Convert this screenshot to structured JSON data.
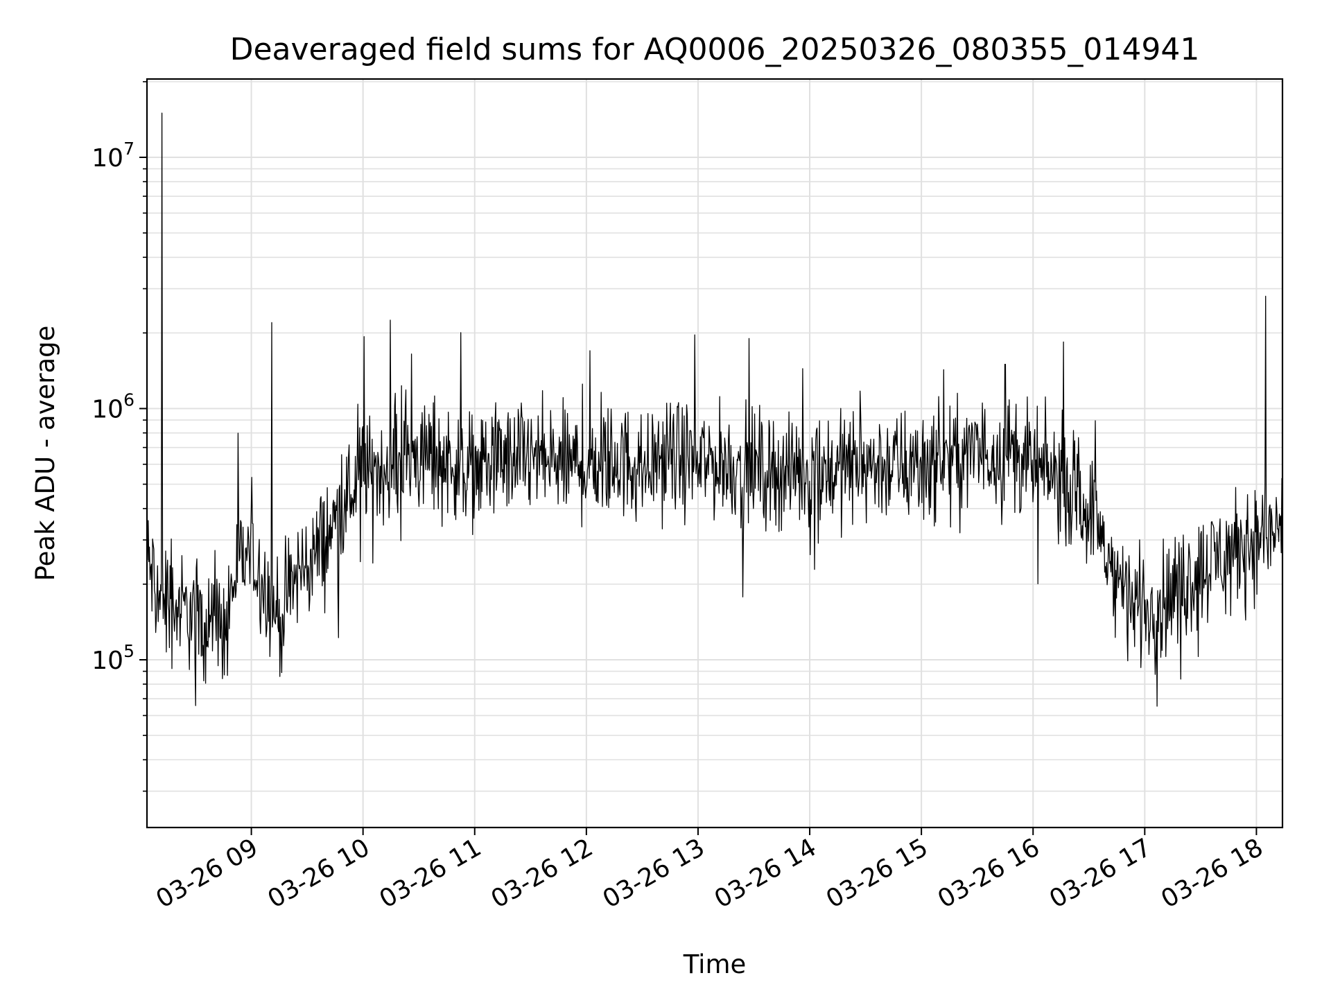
{
  "chart_data": {
    "type": "line",
    "title": "Deaveraged field sums for AQ0006_20250326_080355_014941",
    "xlabel": "Time",
    "ylabel": "Peak ADU - average",
    "x_type": "datetime",
    "xlim": [
      "2025-03-26T08:03:55",
      "2025-03-26T18:14:00"
    ],
    "y_scale": "log",
    "ylim": [
      21500,
      20500000
    ],
    "y_ticks": [
      {
        "value": 100000,
        "base": "10",
        "exponent": "5"
      },
      {
        "value": 1000000,
        "base": "10",
        "exponent": "6"
      },
      {
        "value": 10000000,
        "base": "10",
        "exponent": "7"
      }
    ],
    "x_ticks": [
      {
        "value": "2025-03-26T09:00:00",
        "label": "03-26 09"
      },
      {
        "value": "2025-03-26T10:00:00",
        "label": "03-26 10"
      },
      {
        "value": "2025-03-26T11:00:00",
        "label": "03-26 11"
      },
      {
        "value": "2025-03-26T12:00:00",
        "label": "03-26 12"
      },
      {
        "value": "2025-03-26T13:00:00",
        "label": "03-26 13"
      },
      {
        "value": "2025-03-26T14:00:00",
        "label": "03-26 14"
      },
      {
        "value": "2025-03-26T15:00:00",
        "label": "03-26 15"
      },
      {
        "value": "2025-03-26T16:00:00",
        "label": "03-26 16"
      },
      {
        "value": "2025-03-26T17:00:00",
        "label": "03-26 17"
      },
      {
        "value": "2025-03-26T18:00:00",
        "label": "03-26 18"
      }
    ],
    "grid": "major and minor",
    "line_color": "#000000",
    "grid_color": "#e0e0e0",
    "series": [
      {
        "x": [
          "2025-03-26T08:04:00",
          "2025-03-26T08:10:00",
          "2025-03-26T08:12:00",
          "2025-03-26T08:15:00",
          "2025-03-26T08:20:00",
          "2025-03-26T08:30:00",
          "2025-03-26T08:40:00",
          "2025-03-26T08:45:00",
          "2025-03-26T08:50:00",
          "2025-03-26T08:55:00",
          "2025-03-26T09:00:00",
          "2025-03-26T09:05:00",
          "2025-03-26T09:10:00",
          "2025-03-26T09:11:00",
          "2025-03-26T09:15:00",
          "2025-03-26T09:20:00",
          "2025-03-26T09:25:00",
          "2025-03-26T09:30:00",
          "2025-03-26T09:40:00",
          "2025-03-26T09:50:00",
          "2025-03-26T10:00:00",
          "2025-03-26T10:15:00",
          "2025-03-26T10:30:00",
          "2025-03-26T10:45:00",
          "2025-03-26T11:00:00",
          "2025-03-26T11:15:00",
          "2025-03-26T11:30:00",
          "2025-03-26T11:45:00",
          "2025-03-26T12:00:00",
          "2025-03-26T12:02:00",
          "2025-03-26T12:15:00",
          "2025-03-26T12:30:00",
          "2025-03-26T12:45:00",
          "2025-03-26T13:00:00",
          "2025-03-26T13:15:00",
          "2025-03-26T13:30:00",
          "2025-03-26T13:45:00",
          "2025-03-26T14:00:00",
          "2025-03-26T14:15:00",
          "2025-03-26T14:30:00",
          "2025-03-26T14:45:00",
          "2025-03-26T15:00:00",
          "2025-03-26T15:15:00",
          "2025-03-26T15:30:00",
          "2025-03-26T15:40:00",
          "2025-03-26T15:45:00",
          "2025-03-26T16:00:00",
          "2025-03-26T16:15:00",
          "2025-03-26T16:30:00",
          "2025-03-26T16:40:00",
          "2025-03-26T16:50:00",
          "2025-03-26T17:00:00",
          "2025-03-26T17:10:00",
          "2025-03-26T17:20:00",
          "2025-03-26T17:30:00",
          "2025-03-26T17:40:00",
          "2025-03-26T17:50:00",
          "2025-03-26T18:00:00",
          "2025-03-26T18:05:00",
          "2025-03-26T18:10:00",
          "2025-03-26T18:14:00"
        ],
        "y": [
          250000,
          180000,
          15000000,
          170000,
          160000,
          150000,
          140000,
          120000,
          200000,
          250000,
          260000,
          220000,
          180000,
          2200000,
          140000,
          180000,
          220000,
          240000,
          300000,
          420000,
          550000,
          600000,
          650000,
          620000,
          580000,
          620000,
          630000,
          600000,
          600000,
          1700000,
          620000,
          600000,
          640000,
          620000,
          600000,
          580000,
          560000,
          560000,
          580000,
          600000,
          590000,
          600000,
          620000,
          650000,
          700000,
          1500000,
          580000,
          520000,
          400000,
          260000,
          180000,
          160000,
          170000,
          200000,
          230000,
          260000,
          280000,
          300000,
          2800000,
          330000,
          360000
        ]
      }
    ]
  }
}
